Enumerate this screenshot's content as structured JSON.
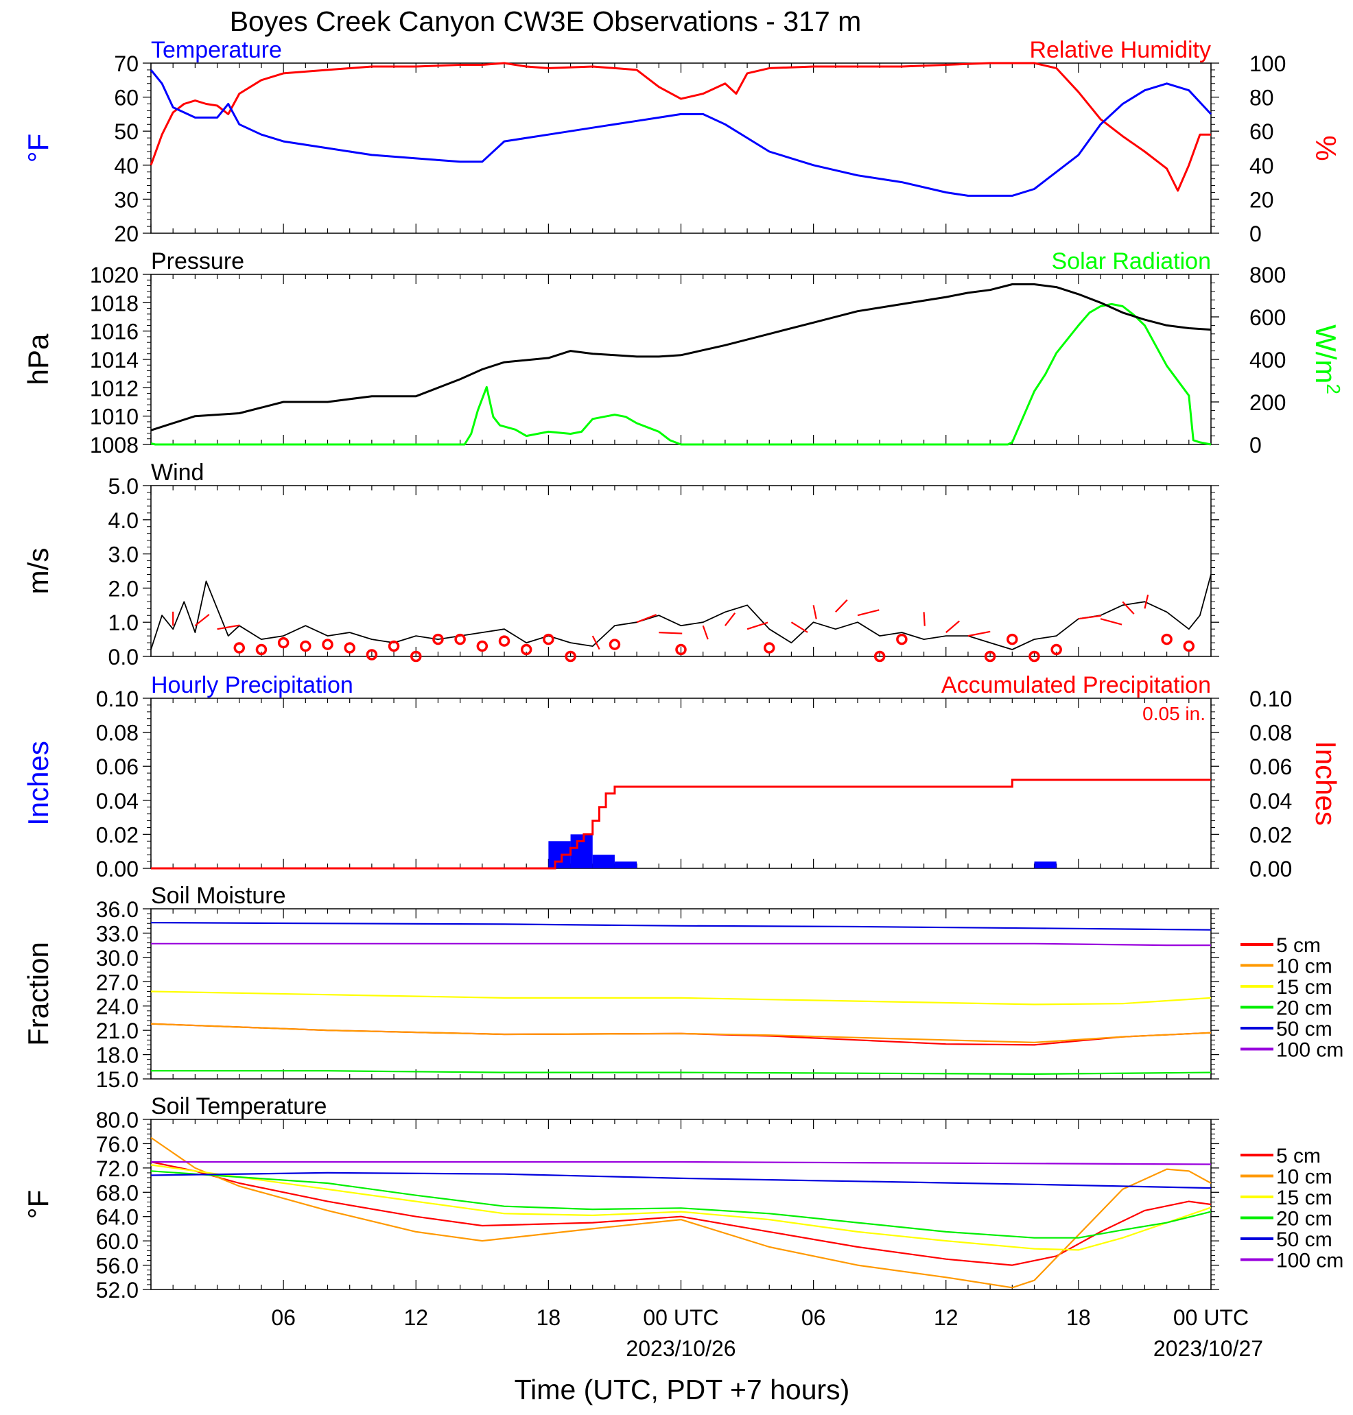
{
  "title": "Boyes Creek Canyon CW3E Observations - 317 m",
  "xaxis": {
    "title": "Time (UTC, PDT +7 hours)",
    "ticks": [
      "06",
      "12",
      "18",
      "00 UTC",
      "06",
      "12",
      "18",
      "00 UTC"
    ],
    "dates": [
      "2023/10/26",
      "2023/10/27"
    ]
  },
  "soil_legend": [
    "5 cm",
    "10 cm",
    "15 cm",
    "20 cm",
    "50 cm",
    "100 cm"
  ],
  "colors": {
    "temperature": "#0000ff",
    "humidity": "#ff0000",
    "pressure": "#000000",
    "solar": "#00ff00",
    "wind": "#000000",
    "barb": "#ff0000",
    "hourly_precip": "#0000ff",
    "accum_precip": "#ff0000",
    "soil": [
      "#ff0000",
      "#ff9900",
      "#ffff00",
      "#00ee00",
      "#0000dd",
      "#9900dd"
    ]
  },
  "chart_data": [
    {
      "type": "line",
      "title_left": "Temperature",
      "title_right": "Relative Humidity",
      "ylabel_left": "°F",
      "ylabel_right": "%",
      "ylim_left": [
        20,
        70
      ],
      "yticks_left": [
        "20",
        "30",
        "40",
        "50",
        "60",
        "70"
      ],
      "ylim_right": [
        0,
        100
      ],
      "yticks_right": [
        "0",
        "20",
        "40",
        "60",
        "80",
        "100"
      ],
      "x_hours": [
        0,
        48
      ],
      "series": [
        {
          "name": "Temperature",
          "axis": "left",
          "x": [
            0,
            0.5,
            1,
            2,
            3,
            3.5,
            4,
            5,
            6,
            8,
            10,
            12,
            14,
            15,
            16,
            18,
            20,
            22,
            23,
            24,
            25,
            26,
            27,
            28,
            30,
            32,
            34,
            36,
            37,
            38,
            39,
            40,
            42,
            43,
            44,
            45,
            46,
            47,
            48
          ],
          "y": [
            68,
            64,
            57,
            54,
            54,
            58,
            52,
            49,
            47,
            45,
            43,
            42,
            41,
            41,
            47,
            49,
            51,
            53,
            54,
            55,
            55,
            52,
            48,
            44,
            40,
            37,
            35,
            32,
            31,
            31,
            31,
            33,
            43,
            52,
            58,
            62,
            64,
            62,
            55
          ]
        },
        {
          "name": "Relative Humidity",
          "axis": "right",
          "x": [
            0,
            0.5,
            1,
            1.5,
            2,
            2.5,
            3,
            3.5,
            4,
            5,
            6,
            8,
            10,
            12,
            14,
            15,
            16,
            17,
            18,
            20,
            21,
            22,
            23,
            24,
            25,
            26,
            26.5,
            27,
            28,
            30,
            32,
            34,
            36,
            38,
            39,
            40,
            41,
            42,
            43,
            44,
            45,
            46,
            46.5,
            47,
            47.5,
            48
          ],
          "y": [
            40,
            58,
            71,
            76,
            78,
            76,
            75,
            70,
            82,
            90,
            94,
            96,
            98,
            98,
            99,
            99,
            100,
            98,
            97,
            98,
            97,
            96,
            86,
            79,
            82,
            88,
            82,
            94,
            97,
            98,
            98,
            98,
            99,
            100,
            100,
            100,
            97,
            83,
            67,
            57,
            48,
            38,
            25,
            40,
            58,
            58
          ]
        }
      ]
    },
    {
      "type": "line",
      "title_left": "Pressure",
      "title_right": "Solar Radiation",
      "ylabel_left": "hPa",
      "ylabel_right": "W/m",
      "ylabel_right_sup": "2",
      "ylim_left": [
        1008,
        1020
      ],
      "yticks_left": [
        "1008",
        "1010",
        "1012",
        "1014",
        "1016",
        "1018",
        "1020"
      ],
      "ylim_right": [
        0,
        800
      ],
      "yticks_right": [
        "0",
        "200",
        "400",
        "600",
        "800"
      ],
      "x_hours": [
        0,
        48
      ],
      "series": [
        {
          "name": "Pressure",
          "axis": "left",
          "x": [
            0,
            2,
            4,
            6,
            8,
            10,
            12,
            14,
            15,
            16,
            18,
            19,
            20,
            21,
            22,
            23,
            24,
            26,
            28,
            30,
            32,
            34,
            36,
            37,
            38,
            39,
            40,
            41,
            42,
            43,
            44,
            45,
            46,
            47,
            48
          ],
          "y": [
            1009,
            1010,
            1010.2,
            1011,
            1011,
            1011.4,
            1011.4,
            1012.6,
            1013.3,
            1013.8,
            1014.1,
            1014.6,
            1014.4,
            1014.3,
            1014.2,
            1014.2,
            1014.3,
            1015,
            1015.8,
            1016.6,
            1017.4,
            1017.9,
            1018.4,
            1018.7,
            1018.9,
            1019.3,
            1019.3,
            1019.1,
            1018.6,
            1018,
            1017.3,
            1016.8,
            1016.4,
            1016.2,
            1016.1
          ]
        },
        {
          "name": "Solar Radiation",
          "axis": "right",
          "x": [
            0,
            0.2,
            14.2,
            14.5,
            14.8,
            15.2,
            15.5,
            15.8,
            16.5,
            17,
            17.5,
            18,
            19,
            19.5,
            20,
            20.5,
            21,
            21.5,
            22,
            22.5,
            23,
            23.5,
            24,
            24.2,
            24.4,
            38.8,
            39,
            39.5,
            40,
            40.5,
            41,
            42,
            42.5,
            43,
            43.5,
            44,
            44.5,
            45,
            46,
            47,
            47.2,
            47.5,
            48
          ],
          "y": [
            5,
            0,
            0,
            50,
            160,
            270,
            130,
            90,
            70,
            40,
            50,
            60,
            50,
            60,
            120,
            130,
            140,
            130,
            100,
            80,
            60,
            20,
            0,
            0,
            0,
            0,
            10,
            130,
            250,
            330,
            430,
            560,
            620,
            650,
            660,
            650,
            610,
            560,
            370,
            230,
            20,
            10,
            0
          ]
        }
      ]
    },
    {
      "type": "line",
      "title_left": "Wind",
      "ylabel_left": "m/s",
      "ylim_left": [
        0,
        5
      ],
      "yticks_left": [
        "0.0",
        "1.0",
        "2.0",
        "3.0",
        "4.0",
        "5.0"
      ],
      "x_hours": [
        0,
        48
      ],
      "series": [
        {
          "name": "Wind",
          "x": [
            0,
            0.5,
            1,
            1.5,
            2,
            2.5,
            3,
            3.5,
            4,
            5,
            6,
            7,
            8,
            9,
            10,
            11,
            12,
            13,
            14,
            15,
            16,
            17,
            18,
            19,
            20,
            21,
            22,
            23,
            24,
            25,
            26,
            27,
            28,
            29,
            30,
            31,
            32,
            33,
            34,
            35,
            36,
            37,
            38,
            39,
            40,
            41,
            42,
            43,
            44,
            45,
            46,
            47,
            47.5,
            48
          ],
          "y": [
            0.2,
            1.2,
            0.8,
            1.6,
            0.7,
            2.2,
            1.4,
            0.6,
            0.9,
            0.5,
            0.6,
            0.9,
            0.6,
            0.7,
            0.5,
            0.4,
            0.6,
            0.5,
            0.6,
            0.7,
            0.8,
            0.4,
            0.6,
            0.4,
            0.3,
            0.9,
            1.0,
            1.2,
            0.9,
            1.0,
            1.3,
            1.5,
            0.8,
            0.4,
            1.0,
            0.8,
            1.0,
            0.6,
            0.7,
            0.5,
            0.6,
            0.6,
            0.4,
            0.2,
            0.5,
            0.6,
            1.1,
            1.2,
            1.5,
            1.6,
            1.3,
            0.8,
            1.2,
            2.4
          ]
        },
        {
          "name": "Wind barbs",
          "x": [
            1,
            2,
            3,
            4,
            5,
            6,
            7,
            8,
            9,
            10,
            11,
            12,
            13,
            14,
            15,
            16,
            17,
            18,
            19,
            20,
            21,
            22,
            23,
            24,
            25,
            26,
            27,
            28,
            29,
            30,
            31,
            32,
            33,
            34,
            35,
            36,
            37,
            38,
            39,
            40,
            41,
            42,
            43,
            44,
            45,
            46,
            47
          ],
          "y": [
            0.9,
            0.9,
            0.8,
            0.25,
            0.2,
            0.4,
            0.3,
            0.35,
            0.25,
            0.05,
            0.3,
            0.0,
            0.5,
            0.5,
            0.3,
            0.45,
            0.2,
            0.5,
            0.0,
            0.6,
            0.35,
            1.0,
            0.7,
            0.2,
            0.9,
            0.9,
            0.8,
            0.25,
            1.0,
            1.5,
            1.3,
            1.2,
            0.0,
            0.5,
            1.3,
            0.7,
            0.6,
            0.0,
            0.5,
            0.0,
            0.2,
            1.1,
            1.1,
            1.6,
            1.4,
            0.5,
            0.3
          ]
        }
      ]
    },
    {
      "type": "bar",
      "title_left": "Hourly Precipitation",
      "title_right": "Accumulated Precipitation",
      "annotation": "0.05 in.",
      "ylabel_left": "Inches",
      "ylabel_right": "Inches",
      "ylim_left": [
        0,
        0.1
      ],
      "yticks_left": [
        "0.00",
        "0.02",
        "0.04",
        "0.06",
        "0.08",
        "0.10"
      ],
      "ylim_right": [
        0,
        0.1
      ],
      "yticks_right": [
        "0.00",
        "0.02",
        "0.04",
        "0.06",
        "0.08",
        "0.10"
      ],
      "x_hours": [
        0,
        48
      ],
      "series": [
        {
          "name": "Hourly Precipitation",
          "type": "bar",
          "x": [
            18,
            19,
            20,
            21,
            40
          ],
          "values": [
            0.016,
            0.02,
            0.008,
            0.004,
            0.004
          ]
        },
        {
          "name": "Accumulated Precipitation",
          "type": "step",
          "x": [
            0,
            18,
            18.3,
            18.6,
            19,
            19.3,
            19.6,
            20,
            20.3,
            20.6,
            21,
            39,
            48
          ],
          "values": [
            0,
            0,
            0.004,
            0.008,
            0.012,
            0.016,
            0.02,
            0.028,
            0.036,
            0.044,
            0.048,
            0.052,
            0.052
          ]
        }
      ]
    },
    {
      "type": "line",
      "title_left": "Soil Moisture",
      "ylabel_left": "Fraction",
      "ylim_left": [
        15,
        36
      ],
      "yticks_left": [
        "15.0",
        "18.0",
        "21.0",
        "24.0",
        "27.0",
        "30.0",
        "33.0",
        "36.0"
      ],
      "x_hours": [
        0,
        48
      ],
      "series": [
        {
          "name": "5 cm",
          "x": [
            0,
            8,
            16,
            24,
            28,
            32,
            36,
            40,
            44,
            48
          ],
          "y": [
            21.8,
            21,
            20.5,
            20.6,
            20.3,
            19.8,
            19.3,
            19.2,
            20.2,
            20.7
          ]
        },
        {
          "name": "10 cm",
          "x": [
            0,
            8,
            16,
            24,
            28,
            32,
            36,
            40,
            44,
            48
          ],
          "y": [
            21.8,
            21,
            20.5,
            20.6,
            20.4,
            20.1,
            19.8,
            19.5,
            20.2,
            20.7
          ]
        },
        {
          "name": "15 cm",
          "x": [
            0,
            8,
            16,
            24,
            32,
            40,
            44,
            48
          ],
          "y": [
            25.8,
            25.4,
            25,
            25,
            24.6,
            24.2,
            24.3,
            25
          ]
        },
        {
          "name": "20 cm",
          "x": [
            0,
            8,
            16,
            24,
            32,
            40,
            48
          ],
          "y": [
            16,
            16,
            15.8,
            15.8,
            15.7,
            15.6,
            15.8
          ]
        },
        {
          "name": "50 cm",
          "x": [
            0,
            8,
            16,
            24,
            32,
            40,
            48
          ],
          "y": [
            34.3,
            34.2,
            34.1,
            33.9,
            33.8,
            33.6,
            33.4
          ]
        },
        {
          "name": "100 cm",
          "x": [
            0,
            8,
            16,
            24,
            32,
            40,
            46,
            48
          ],
          "y": [
            31.7,
            31.7,
            31.7,
            31.7,
            31.7,
            31.7,
            31.5,
            31.5
          ]
        }
      ]
    },
    {
      "type": "line",
      "title_left": "Soil Temperature",
      "ylabel_left": "°F",
      "ylim_left": [
        52,
        80
      ],
      "yticks_left": [
        "52.0",
        "56.0",
        "60.0",
        "64.0",
        "68.0",
        "72.0",
        "76.0",
        "80.0"
      ],
      "x_hours": [
        0,
        48
      ],
      "series": [
        {
          "name": "5 cm",
          "x": [
            0,
            2,
            4,
            8,
            12,
            15,
            20,
            24,
            28,
            32,
            36,
            39,
            41,
            43,
            45,
            47,
            48
          ],
          "y": [
            73,
            71.5,
            69.5,
            66.5,
            64,
            62.5,
            63,
            64,
            61.5,
            59,
            57,
            56,
            57.5,
            61.5,
            65,
            66.5,
            66
          ]
        },
        {
          "name": "10 cm",
          "x": [
            0,
            2,
            4,
            8,
            12,
            15,
            20,
            24,
            28,
            32,
            36,
            39,
            40,
            42,
            44,
            46,
            47,
            48
          ],
          "y": [
            77,
            72,
            69,
            65,
            61.5,
            60,
            62,
            63.5,
            59,
            56,
            54,
            52.3,
            53.5,
            61,
            68.5,
            71.8,
            71.5,
            69.5
          ]
        },
        {
          "name": "15 cm",
          "x": [
            0,
            4,
            8,
            12,
            16,
            20,
            24,
            28,
            32,
            36,
            40,
            42,
            44,
            46,
            48
          ],
          "y": [
            72.5,
            70.5,
            68.5,
            66.5,
            64.5,
            64.2,
            64.8,
            63.5,
            61.5,
            60,
            58.7,
            58.5,
            60.5,
            63,
            65.5
          ]
        },
        {
          "name": "20 cm",
          "x": [
            0,
            4,
            8,
            12,
            16,
            20,
            24,
            28,
            32,
            36,
            40,
            42,
            44,
            46,
            48
          ],
          "y": [
            71.5,
            70.5,
            69.5,
            67.5,
            65.7,
            65.2,
            65.4,
            64.5,
            63,
            61.5,
            60.5,
            60.5,
            61.8,
            63,
            64.8
          ]
        },
        {
          "name": "50 cm",
          "x": [
            0,
            8,
            16,
            24,
            32,
            40,
            48
          ],
          "y": [
            70.8,
            71.2,
            71,
            70.3,
            69.8,
            69.3,
            68.7
          ]
        },
        {
          "name": "100 cm",
          "x": [
            0,
            24,
            48
          ],
          "y": [
            73,
            73,
            72.6
          ]
        }
      ]
    }
  ]
}
